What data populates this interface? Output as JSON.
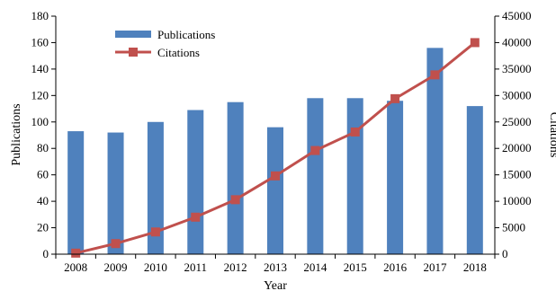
{
  "chart_data": {
    "type": "bar",
    "x": [
      2008,
      2009,
      2010,
      2011,
      2012,
      2013,
      2014,
      2015,
      2016,
      2017,
      2018
    ],
    "xlabel": "Year",
    "ylabel": "Publications",
    "y2label": "Citations",
    "ylim": [
      0,
      180
    ],
    "y2lim": [
      0,
      45000
    ],
    "yticks": [
      0,
      20,
      40,
      60,
      80,
      100,
      120,
      140,
      160,
      180
    ],
    "y2ticks": [
      0,
      5000,
      10000,
      15000,
      20000,
      25000,
      30000,
      35000,
      40000,
      45000
    ],
    "grid": false,
    "legend_position": "top-left",
    "series": [
      {
        "name": "Publications",
        "type": "bar",
        "axis": "left",
        "color": "#4F81BD",
        "values": [
          93,
          92,
          100,
          109,
          115,
          96,
          118,
          118,
          116,
          156,
          112
        ]
      },
      {
        "name": "Citations",
        "type": "line",
        "axis": "right",
        "marker": "square",
        "color": "#C0504D",
        "values": [
          200,
          2000,
          4200,
          7000,
          10300,
          14800,
          19600,
          23100,
          29400,
          33900,
          40000
        ]
      }
    ]
  }
}
